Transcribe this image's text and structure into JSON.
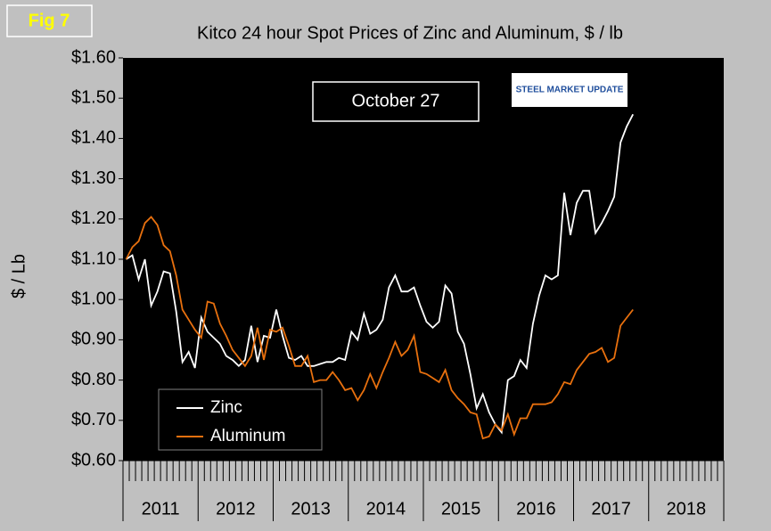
{
  "fig_label": "Fig 7",
  "badge": "October 27",
  "logo": "STEEL MARKET UPDATE",
  "chart_data": {
    "type": "line",
    "title": "Kitco 24 hour Spot Prices of Zinc and Aluminum, $ / lb",
    "y_label": "$ / Lb",
    "categories": [
      null,
      null,
      null,
      null,
      null,
      null,
      null,
      null,
      null,
      null,
      null,
      null,
      null,
      null,
      null,
      null,
      null,
      null,
      null,
      null,
      null,
      null,
      null,
      null,
      null,
      null,
      null,
      null,
      null,
      null,
      null,
      null,
      null,
      null,
      null,
      null,
      null,
      null,
      null,
      null,
      null,
      null,
      null,
      null,
      null,
      null,
      null,
      null,
      null,
      null,
      null,
      null,
      null,
      null,
      null,
      null,
      null,
      null,
      null,
      null,
      null,
      null,
      null,
      null,
      null,
      null,
      null,
      null,
      null,
      null,
      null,
      null,
      null,
      null,
      null,
      null,
      null,
      null,
      null,
      null,
      null,
      null,
      null,
      null,
      null,
      null,
      null,
      null,
      null,
      null,
      null,
      null,
      null,
      null,
      null,
      null
    ],
    "year_labels": [
      "2011",
      "2012",
      "2013",
      "2014",
      "2015",
      "2016",
      "2017",
      "2018"
    ],
    "series": [
      {
        "name": "Zinc",
        "color": "#ffffff",
        "values": [
          1.1,
          1.11,
          1.05,
          1.1,
          0.985,
          1.02,
          1.07,
          1.065,
          0.97,
          0.845,
          0.87,
          0.83,
          0.955,
          0.92,
          0.905,
          0.89,
          0.86,
          0.85,
          0.835,
          0.85,
          0.935,
          0.845,
          0.91,
          0.905,
          0.975,
          0.91,
          0.855,
          0.85,
          0.86,
          0.835,
          0.835,
          0.84,
          0.845,
          0.845,
          0.855,
          0.85,
          0.92,
          0.9,
          0.965,
          0.915,
          0.925,
          0.95,
          1.03,
          1.06,
          1.02,
          1.02,
          1.03,
          0.985,
          0.945,
          0.93,
          0.945,
          1.035,
          1.015,
          0.92,
          0.89,
          0.815,
          0.73,
          0.765,
          0.72,
          0.69,
          0.67,
          0.8,
          0.81,
          0.85,
          0.83,
          0.94,
          1.01,
          1.06,
          1.05,
          1.06,
          1.265,
          1.16,
          1.24,
          1.27,
          1.27,
          1.165,
          1.19,
          1.22,
          1.255,
          1.39,
          1.43,
          1.46,
          null,
          null,
          null,
          null,
          null,
          null,
          null,
          null,
          null,
          null,
          null,
          null,
          null,
          null
        ]
      },
      {
        "name": "Aluminum",
        "color": "#e8700e",
        "values": [
          1.1,
          1.13,
          1.145,
          1.19,
          1.205,
          1.185,
          1.135,
          1.12,
          1.06,
          0.975,
          0.95,
          0.925,
          0.905,
          0.995,
          0.99,
          0.94,
          0.91,
          0.875,
          0.855,
          0.835,
          0.86,
          0.93,
          0.85,
          0.925,
          0.92,
          0.93,
          0.885,
          0.835,
          0.835,
          0.86,
          0.795,
          0.8,
          0.8,
          0.82,
          0.8,
          0.775,
          0.78,
          0.75,
          0.775,
          0.815,
          0.78,
          0.82,
          0.855,
          0.895,
          0.86,
          0.875,
          0.91,
          0.82,
          0.815,
          0.805,
          0.795,
          0.825,
          0.775,
          0.755,
          0.74,
          0.72,
          0.715,
          0.655,
          0.66,
          0.69,
          0.675,
          0.715,
          0.665,
          0.705,
          0.705,
          0.74,
          0.74,
          0.74,
          0.745,
          0.765,
          0.795,
          0.79,
          0.825,
          0.845,
          0.865,
          0.87,
          0.88,
          0.845,
          0.855,
          0.935,
          0.955,
          0.975,
          null,
          null,
          null,
          null,
          null,
          null,
          null,
          null,
          null,
          null,
          null,
          null,
          null,
          null
        ]
      }
    ],
    "ylim": [
      0.6,
      1.6
    ],
    "yticks": [
      {
        "value": 0.6,
        "label": "$0.60"
      },
      {
        "value": 0.7,
        "label": "$0.70"
      },
      {
        "value": 0.8,
        "label": "$0.80"
      },
      {
        "value": 0.9,
        "label": "$0.90"
      },
      {
        "value": 1.0,
        "label": "$1.00"
      },
      {
        "value": 1.1,
        "label": "$1.10"
      },
      {
        "value": 1.2,
        "label": "$1.20"
      },
      {
        "value": 1.3,
        "label": "$1.30"
      },
      {
        "value": 1.4,
        "label": "$1.40"
      },
      {
        "value": 1.5,
        "label": "$1.50"
      },
      {
        "value": 1.6,
        "label": "$1.60"
      }
    ],
    "grid": false,
    "legend": "lower-left"
  }
}
